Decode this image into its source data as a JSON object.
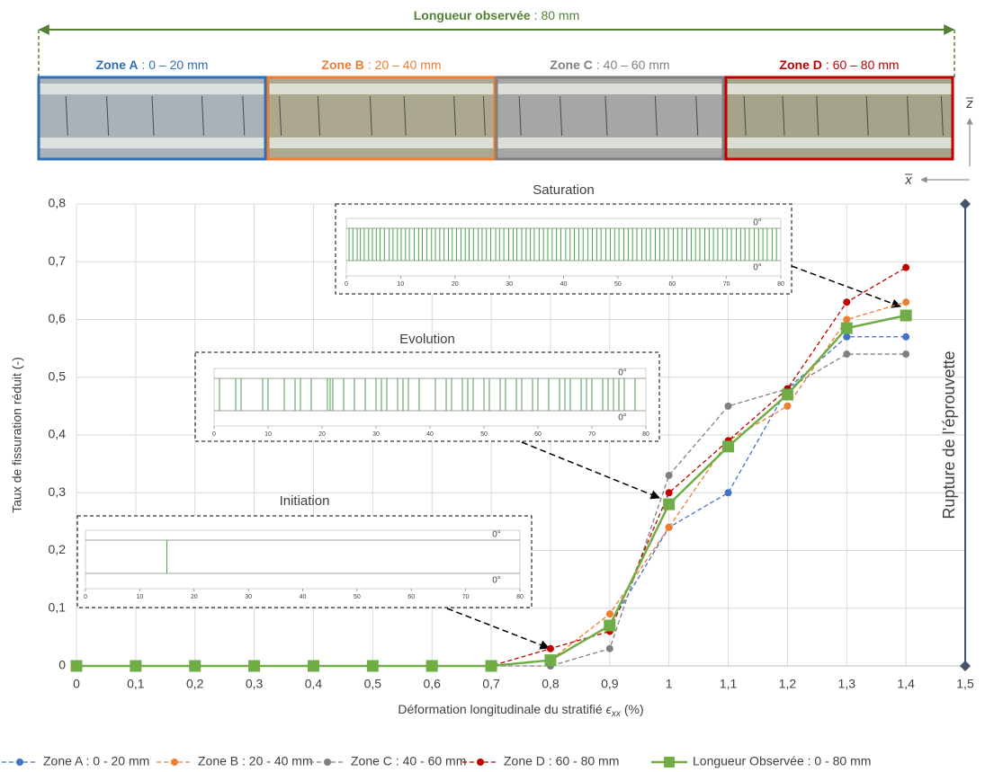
{
  "banner": {
    "title": "Longueur observée",
    "title_value": ": 80 mm",
    "color": "#548235",
    "zones": [
      {
        "name": "Zone A",
        "range": ": 0 – 20 mm",
        "color": "#2e6fb5"
      },
      {
        "name": "Zone B",
        "range": ": 20 – 40 mm",
        "color": "#ed7d31"
      },
      {
        "name": "Zone C",
        "range": ": 40 – 60 mm",
        "color": "#808080"
      },
      {
        "name": "Zone D",
        "range": ": 60 – 80 mm",
        "color": "#c00000"
      }
    ],
    "axis_z": "z",
    "axis_x": "x"
  },
  "chart_data": [
    {
      "type": "line",
      "y_label": "Taux de fissuration réduit (-)",
      "x_label": {
        "text": "Déformation longitudinale du stratifié",
        "symbol": "ϵ",
        "subscript": "xx",
        "unit": "(%)"
      },
      "annotation": "Rupture de l’éprouvette",
      "x": [
        0,
        0.1,
        0.2,
        0.3,
        0.4,
        0.5,
        0.6,
        0.7,
        0.8,
        0.9,
        1.0,
        1.1,
        1.2,
        1.3,
        1.4
      ],
      "xlim": [
        0,
        1.5
      ],
      "ylim": [
        0,
        0.8
      ],
      "grid": true,
      "xticks": [
        0,
        {
          "value": 0.1,
          "label": "0,1"
        },
        {
          "value": 0.2,
          "label": "0,2"
        },
        {
          "value": 0.3,
          "label": "0,3"
        },
        {
          "value": 0.4,
          "label": "0,4"
        },
        {
          "value": 0.5,
          "label": "0,5"
        },
        {
          "value": 0.6,
          "label": "0,6"
        },
        {
          "value": 0.7,
          "label": "0,7"
        },
        {
          "value": 0.8,
          "label": "0,8"
        },
        {
          "value": 0.9,
          "label": "0,9"
        },
        1,
        {
          "value": 1.1,
          "label": "1,1"
        },
        {
          "value": 1.2,
          "label": "1,2"
        },
        {
          "value": 1.3,
          "label": "1,3"
        },
        {
          "value": 1.4,
          "label": "1,4"
        },
        {
          "value": 1.5,
          "label": "1,5"
        }
      ],
      "yticks": [
        0,
        {
          "value": 0.1,
          "label": "0,1"
        },
        {
          "value": 0.2,
          "label": "0,2"
        },
        {
          "value": 0.3,
          "label": "0,3"
        },
        {
          "value": 0.4,
          "label": "0,4"
        },
        {
          "value": 0.5,
          "label": "0,5"
        },
        {
          "value": 0.6,
          "label": "0,6"
        },
        {
          "value": 0.7,
          "label": "0,7"
        },
        {
          "value": 0.8,
          "label": "0,8"
        }
      ],
      "series": [
        {
          "name": "Zone A : 0 - 20 mm",
          "color": "#4472c4",
          "dashed": true,
          "marker": "circle",
          "values": [
            0,
            0,
            0,
            0,
            0,
            0,
            0,
            0,
            0.01,
            0.07,
            0.24,
            0.3,
            0.48,
            0.57,
            0.57
          ]
        },
        {
          "name": "Zone B : 20 - 40 mm",
          "color": "#ed7d31",
          "dashed": true,
          "marker": "circle",
          "values": [
            0,
            0,
            0,
            0,
            0,
            0,
            0,
            0,
            0.01,
            0.09,
            0.24,
            0.39,
            0.45,
            0.6,
            0.63
          ]
        },
        {
          "name": "Zone C : 40 - 60 mm",
          "color": "#808080",
          "dashed": true,
          "marker": "circle",
          "values": [
            0,
            0,
            0,
            0,
            0,
            0,
            0,
            0,
            0,
            0.03,
            0.33,
            0.45,
            0.48,
            0.54,
            0.54
          ]
        },
        {
          "name": "Zone D : 60 - 80 mm",
          "color": "#c00000",
          "dashed": true,
          "marker": "circle",
          "values": [
            0,
            0,
            0,
            0,
            0,
            0,
            0,
            0,
            0.03,
            0.06,
            0.3,
            0.39,
            0.48,
            0.63,
            0.69
          ]
        },
        {
          "name": "Longueur Observée : 0 - 80 mm",
          "color": "#70ad47",
          "dashed": false,
          "marker": "square",
          "values": [
            0,
            0,
            0,
            0,
            0,
            0,
            0,
            0,
            0.01,
            0.07,
            0.28,
            0.38,
            0.47,
            0.585,
            0.607
          ]
        }
      ]
    },
    {
      "type": "cracks",
      "title": "Saturation",
      "top_label": "0°",
      "bottom_label": "0°",
      "color": "#3a9a3a",
      "xlim": [
        0,
        80
      ],
      "xticks": [
        0,
        10,
        20,
        30,
        40,
        50,
        60,
        70,
        80
      ],
      "x": [
        0.5,
        1.2,
        2,
        2.6,
        3.3,
        4.1,
        4.8,
        5.5,
        6.2,
        7,
        7.9,
        8.6,
        9.4,
        10.1,
        10.9,
        11.6,
        12.5,
        13.3,
        14,
        14.8,
        15.7,
        16.4,
        17.2,
        18,
        18.8,
        19.5,
        20.3,
        21.1,
        21.9,
        22.6,
        23.4,
        24.3,
        25,
        25.8,
        26.6,
        27.5,
        28.2,
        29,
        29.9,
        30.7,
        31.4,
        32.3,
        33.1,
        33.9,
        34.6,
        35.5,
        36.3,
        37.1,
        37.9,
        38.7,
        39.5,
        40.4,
        41.2,
        42,
        42.8,
        43.6,
        44.5,
        45.3,
        46.1,
        46.9,
        47.8,
        48.6,
        49.4,
        50.2,
        51.1,
        51.9,
        52.7,
        53.5,
        54.4,
        55.2,
        56,
        56.9,
        57.7,
        58.5,
        59.3,
        60.2,
        61,
        61.8,
        62.7,
        63.5,
        64.3,
        65.1,
        66,
        66.8,
        67.6,
        68.4,
        69.3,
        70.1,
        70.9,
        71.8,
        72.6,
        73.4,
        74.2,
        75.1,
        75.9,
        76.7,
        77.5,
        78.4,
        79.2
      ]
    },
    {
      "type": "cracks",
      "title": "Evolution",
      "top_label": "0°",
      "bottom_label": "0°",
      "color": "#3a9a3a",
      "xlim": [
        0,
        80
      ],
      "xticks": [
        0,
        10,
        20,
        30,
        40,
        50,
        60,
        70,
        80
      ],
      "x": [
        1,
        4,
        5,
        9,
        10,
        13,
        15,
        16,
        18,
        21,
        21.5,
        22,
        24,
        26,
        28,
        30,
        31,
        32,
        34,
        35,
        36,
        38,
        41,
        43,
        44,
        46,
        47,
        48,
        50,
        51,
        53,
        54,
        56,
        57,
        59,
        60,
        62,
        64,
        65,
        66,
        68,
        69,
        70,
        72,
        73,
        74,
        75,
        76,
        78
      ]
    },
    {
      "type": "cracks",
      "title": "Initiation",
      "top_label": "0°",
      "bottom_label": "0°",
      "color": "#3a9a3a",
      "xlim": [
        0,
        80
      ],
      "xticks": [
        0,
        10,
        20,
        30,
        40,
        50,
        60,
        70,
        80
      ],
      "x": [
        15
      ]
    }
  ]
}
